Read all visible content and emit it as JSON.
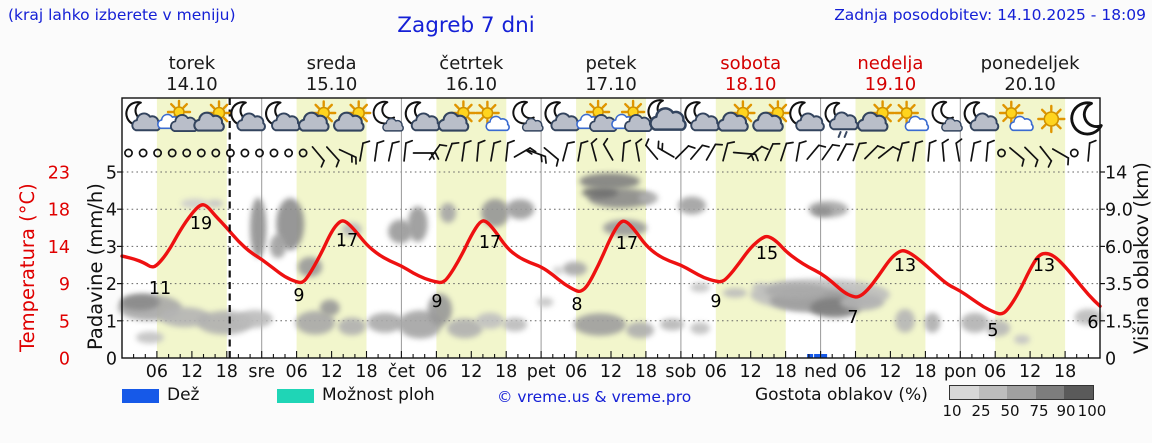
{
  "header": {
    "hint": "(kraj lahko izberete v meniju)",
    "title": "Zagreb 7 dni",
    "updated": "Zadnja posodobitev: 14.10.2025 - 18:09"
  },
  "colors": {
    "blue_text": "#1520d6",
    "red": "#e00000",
    "weekend_red": "#d40000",
    "curve_red": "#ee1111",
    "day_band": "#f2f6cc",
    "rain_blue": "#1659e8",
    "showers_cyan": "#1fd5b6",
    "density_scale": [
      "#d7d7d7",
      "#bdbdbd",
      "#a0a0a0",
      "#7d7d7d",
      "#5a5a5a"
    ]
  },
  "days": [
    {
      "name": "torek",
      "date": "14.10",
      "weekend": false
    },
    {
      "name": "sreda",
      "date": "15.10",
      "weekend": false
    },
    {
      "name": "četrtek",
      "date": "16.10",
      "weekend": false
    },
    {
      "name": "petek",
      "date": "17.10",
      "weekend": false
    },
    {
      "name": "sobota",
      "date": "18.10",
      "weekend": true
    },
    {
      "name": "nedelja",
      "date": "19.10",
      "weekend": true
    },
    {
      "name": "ponedeljek",
      "date": "20.10",
      "weekend": false
    }
  ],
  "axes": {
    "temp_title": "Temperatura (°C)",
    "temp_ticks": [
      "23",
      "18",
      "14",
      "9",
      "5",
      "0"
    ],
    "precip_title": "Padavine (mm/h)",
    "precip_ticks": [
      "5",
      "4",
      "3",
      "2",
      "1",
      "0"
    ],
    "cloud_title": "Višina oblakov (km)",
    "cloud_ticks": [
      "14",
      "9.0",
      "6.0",
      "3.5",
      "1.5",
      "0"
    ],
    "hour_labels": [
      "06",
      "12",
      "18"
    ],
    "day_abbrs": [
      "sre",
      "čet",
      "pet",
      "sob",
      "ned",
      "pon"
    ]
  },
  "legend": {
    "rain_label": "Dež",
    "showers_label": "Možnost ploh",
    "copyright": "© vreme.us & vreme.pro",
    "density_label": "Gostota oblakov (%)",
    "density_ticks": [
      "10",
      "25",
      "50",
      "75",
      "90",
      "100"
    ]
  },
  "chart_data": {
    "type": "line",
    "title": "Zagreb 7 dni",
    "x_axis": "hours from 14.10.2025 00:00, 7 days (168 h)",
    "y_axes": {
      "temperature_c": [
        0,
        23
      ],
      "precip_mm_h": [
        0,
        5
      ],
      "cloud_height_km": [
        "0",
        "1.5",
        "3.5",
        "6.0",
        "9.0",
        "14"
      ]
    },
    "now_hour": 18.5,
    "daily_min_max": [
      {
        "day": "torek",
        "tmin": 11,
        "tmax": 19
      },
      {
        "day": "sreda",
        "tmin": 9,
        "tmax": 17
      },
      {
        "day": "četrtek",
        "tmin": 9,
        "tmax": 17
      },
      {
        "day": "petek",
        "tmin": 8,
        "tmax": 17
      },
      {
        "day": "sobota",
        "tmin": 9,
        "tmax": 15
      },
      {
        "day": "nedelja",
        "tmin": 7,
        "tmax": 13
      },
      {
        "day": "ponedeljek",
        "tmin": 5,
        "tmax": 13,
        "end_value": 6
      }
    ],
    "temperature_series": [
      [
        0,
        12.6
      ],
      [
        2,
        12.3
      ],
      [
        4,
        11.7
      ],
      [
        5,
        11.2
      ],
      [
        6,
        11.4
      ],
      [
        8,
        13.2
      ],
      [
        10,
        15.8
      ],
      [
        12,
        17.9
      ],
      [
        13.5,
        19.0
      ],
      [
        14.5,
        18.9
      ],
      [
        16,
        17.6
      ],
      [
        18,
        16.1
      ],
      [
        20,
        14.4
      ],
      [
        22,
        13.1
      ],
      [
        24,
        12.2
      ],
      [
        26,
        11.1
      ],
      [
        28,
        10.0
      ],
      [
        30,
        9.4
      ],
      [
        31,
        9.3
      ],
      [
        32,
        10.1
      ],
      [
        34,
        12.6
      ],
      [
        36,
        15.7
      ],
      [
        37.5,
        17.0
      ],
      [
        38.5,
        16.9
      ],
      [
        40,
        15.8
      ],
      [
        42,
        14.0
      ],
      [
        44,
        12.8
      ],
      [
        46,
        12.0
      ],
      [
        48,
        11.4
      ],
      [
        50,
        10.5
      ],
      [
        52,
        9.8
      ],
      [
        54,
        9.4
      ],
      [
        55,
        9.3
      ],
      [
        56,
        9.9
      ],
      [
        58,
        12.2
      ],
      [
        60,
        15.2
      ],
      [
        61.5,
        16.9
      ],
      [
        62.5,
        17.0
      ],
      [
        64,
        15.8
      ],
      [
        66,
        13.7
      ],
      [
        68,
        12.5
      ],
      [
        70,
        11.8
      ],
      [
        72,
        11.3
      ],
      [
        74,
        10.3
      ],
      [
        76,
        9.1
      ],
      [
        78,
        8.3
      ],
      [
        78.8,
        8.2
      ],
      [
        80,
        8.9
      ],
      [
        82,
        11.7
      ],
      [
        84,
        15.0
      ],
      [
        85.5,
        16.8
      ],
      [
        86.5,
        17.0
      ],
      [
        88,
        15.9
      ],
      [
        90,
        13.9
      ],
      [
        92,
        12.7
      ],
      [
        94,
        12.0
      ],
      [
        96,
        11.5
      ],
      [
        98,
        10.7
      ],
      [
        100,
        9.9
      ],
      [
        102,
        9.5
      ],
      [
        103,
        9.4
      ],
      [
        104,
        9.9
      ],
      [
        106,
        11.7
      ],
      [
        108,
        13.7
      ],
      [
        110,
        14.9
      ],
      [
        111,
        15.1
      ],
      [
        112.5,
        14.4
      ],
      [
        114,
        13.2
      ],
      [
        116,
        12.1
      ],
      [
        118,
        11.2
      ],
      [
        120,
        10.5
      ],
      [
        122,
        9.4
      ],
      [
        124,
        8.1
      ],
      [
        125.5,
        7.6
      ],
      [
        126.5,
        7.5
      ],
      [
        128,
        8.3
      ],
      [
        130,
        10.2
      ],
      [
        132,
        12.3
      ],
      [
        133.5,
        13.2
      ],
      [
        134.5,
        13.3
      ],
      [
        136,
        12.7
      ],
      [
        138,
        11.5
      ],
      [
        140,
        10.2
      ],
      [
        142,
        9.0
      ],
      [
        144,
        8.3
      ],
      [
        146,
        7.3
      ],
      [
        148,
        6.3
      ],
      [
        150,
        5.6
      ],
      [
        151,
        5.4
      ],
      [
        152,
        5.8
      ],
      [
        154,
        8.0
      ],
      [
        156,
        11.0
      ],
      [
        157.5,
        12.8
      ],
      [
        159,
        13.0
      ],
      [
        160.5,
        12.4
      ],
      [
        162,
        11.3
      ],
      [
        164,
        9.6
      ],
      [
        166,
        7.8
      ],
      [
        168,
        6.4
      ]
    ],
    "temperature_labels": [
      [
        11,
        160,
        294
      ],
      [
        19,
        201,
        229
      ],
      [
        9,
        299,
        301
      ],
      [
        17,
        347,
        246
      ],
      [
        9,
        437,
        307
      ],
      [
        17,
        490,
        248
      ],
      [
        8,
        577,
        310
      ],
      [
        17,
        627,
        249
      ],
      [
        9,
        716,
        307
      ],
      [
        15,
        767,
        259
      ],
      [
        7,
        853,
        323
      ],
      [
        13,
        905,
        271
      ],
      [
        5,
        993,
        336
      ],
      [
        13,
        1044,
        271
      ],
      [
        6,
        1093,
        328
      ]
    ],
    "icons": [
      "moon-cloud",
      "sun-clouds",
      "sun-cloud",
      "moon-cloud",
      "moon-cloud",
      "sun-cloud",
      "sun-cloud",
      "moon-small",
      "moon-cloud",
      "sun-cloud",
      "sun-cloud-white",
      "moon-small",
      "moon-cloud",
      "sun-clouds",
      "sun-clouds",
      "moon-big",
      "moon-cloud",
      "sun-cloud",
      "sun-cloud",
      "moon-cloud",
      "moon-drizzle",
      "sun-cloud",
      "sun-cloud-white",
      "moon-small",
      "moon-cloud",
      "sun-cloud-white",
      "sun",
      "moon"
    ],
    "wind": [
      "c",
      "c",
      "c",
      "c",
      "c",
      "c",
      "c",
      "c",
      "c",
      "c",
      "c",
      "c",
      "c",
      [
        140,
        1
      ],
      [
        138,
        1
      ],
      [
        115,
        2
      ],
      [
        10,
        1
      ],
      [
        8,
        1
      ],
      [
        12,
        1
      ],
      [
        6,
        1
      ],
      [
        90,
        2,
        "L"
      ],
      [
        35,
        1
      ],
      [
        20,
        1
      ],
      [
        8,
        1
      ],
      [
        5,
        1
      ],
      [
        10,
        1
      ],
      [
        6,
        1
      ],
      [
        60,
        2
      ],
      [
        110,
        2
      ],
      [
        130,
        1
      ],
      [
        15,
        1
      ],
      [
        10,
        1
      ],
      [
        345,
        1
      ],
      [
        330,
        1
      ],
      [
        5,
        1
      ],
      [
        350,
        1
      ],
      [
        320,
        1
      ],
      [
        300,
        2
      ],
      [
        45,
        1
      ],
      [
        40,
        1
      ],
      [
        30,
        1
      ],
      [
        15,
        1
      ],
      [
        95,
        2,
        "L"
      ],
      [
        50,
        1
      ],
      [
        25,
        1
      ],
      [
        18,
        1
      ],
      [
        10,
        1
      ],
      [
        40,
        1
      ],
      [
        35,
        1
      ],
      [
        28,
        1
      ],
      [
        20,
        1
      ],
      [
        45,
        1
      ],
      [
        52,
        1
      ],
      [
        15,
        1
      ],
      [
        10,
        1
      ],
      [
        5,
        1
      ],
      [
        355,
        1
      ],
      [
        350,
        1
      ],
      [
        10,
        1
      ],
      [
        5,
        1
      ],
      "c",
      [
        130,
        1
      ],
      [
        135,
        1
      ],
      [
        142,
        1
      ],
      [
        120,
        1
      ],
      "c",
      [
        5,
        1
      ]
    ],
    "clouds": [
      [
        4.8,
        1.35,
        5.5,
        0.35,
        "#a8a8a8"
      ],
      [
        3.1,
        1.5,
        3.4,
        0.22,
        "#8a8a8a"
      ],
      [
        10.8,
        1.1,
        4.3,
        0.27,
        "#b4b4b4"
      ],
      [
        17.7,
        0.95,
        4.8,
        0.32,
        "#b0b0b0"
      ],
      [
        22.8,
        1.05,
        3.1,
        0.24,
        "#bbbbbb"
      ],
      [
        4.8,
        0.55,
        2.4,
        0.16,
        "#c2c2c2"
      ],
      [
        12.5,
        4.15,
        2.4,
        0.13,
        "#cccccc"
      ],
      [
        16.0,
        4.15,
        1.4,
        0.11,
        "#c6c6c6"
      ],
      [
        23.4,
        3.5,
        1.4,
        0.81,
        "#909090"
      ],
      [
        28.9,
        3.6,
        2.4,
        0.7,
        "#8c8c8c"
      ],
      [
        26.8,
        3.0,
        1.4,
        0.32,
        "#a0a0a0"
      ],
      [
        32.3,
        2.45,
        2.1,
        0.27,
        "#9a9a9a"
      ],
      [
        33.2,
        0.95,
        3.4,
        0.32,
        "#a8a8a8"
      ],
      [
        35.7,
        1.35,
        1.7,
        0.22,
        "#999999"
      ],
      [
        39.5,
        0.85,
        2.4,
        0.24,
        "#b0b0b0"
      ],
      [
        45.2,
        0.95,
        3.1,
        0.27,
        "#aaaaaa"
      ],
      [
        39.5,
        3.45,
        1.7,
        0.19,
        "#b8b8b8"
      ],
      [
        47.8,
        3.4,
        2.1,
        0.32,
        "#9a9a9a"
      ],
      [
        51.2,
        0.9,
        3.8,
        0.38,
        "#a4a4a4"
      ],
      [
        54.6,
        1.3,
        2.1,
        0.43,
        "#989898"
      ],
      [
        58.9,
        0.8,
        3.1,
        0.27,
        "#b0b0b0"
      ],
      [
        63.2,
        1.0,
        2.4,
        0.22,
        "#c0c0c0"
      ],
      [
        67.5,
        0.9,
        2.1,
        0.19,
        "#bbbbbb"
      ],
      [
        50.8,
        3.6,
        1.7,
        0.48,
        "#999999"
      ],
      [
        56.0,
        3.9,
        1.4,
        0.27,
        "#a6a6a6"
      ],
      [
        64.1,
        3.9,
        2.4,
        0.38,
        "#969696"
      ],
      [
        68.4,
        4.0,
        2.4,
        0.27,
        "#9c9c9c"
      ],
      [
        72.7,
        1.5,
        1.4,
        0.13,
        "#c6c6c6"
      ],
      [
        74.9,
        2.35,
        0.9,
        0.11,
        "#cccccc"
      ],
      [
        85.6,
        4.3,
        5.5,
        0.27,
        "#8a8a8a"
      ],
      [
        82.1,
        4.45,
        3.1,
        0.16,
        "#707070"
      ],
      [
        83.8,
        4.75,
        5.2,
        0.22,
        "#808080"
      ],
      [
        90.4,
        4.3,
        1.7,
        0.16,
        "#b0b0b0"
      ],
      [
        97.9,
        4.1,
        2.4,
        0.24,
        "#a0a0a0"
      ],
      [
        86.4,
        3.5,
        3.8,
        0.22,
        "#9a9a9a"
      ],
      [
        77.8,
        2.4,
        2.1,
        0.19,
        "#a8a8a8"
      ],
      [
        82.1,
        0.9,
        4.5,
        0.3,
        "#9e9e9e"
      ],
      [
        89.0,
        0.75,
        2.4,
        0.22,
        "#aeaeae"
      ],
      [
        94.5,
        0.9,
        2.1,
        0.16,
        "#b6b6b6"
      ],
      [
        99.3,
        0.8,
        1.7,
        0.16,
        "#c0c0c0"
      ],
      [
        99.3,
        1.9,
        1.7,
        0.13,
        "#c4c4c4"
      ],
      [
        105.3,
        1.75,
        2.1,
        0.13,
        "#bcbcbc"
      ],
      [
        109.6,
        1.9,
        1.4,
        0.11,
        "#c0c0c0"
      ],
      [
        119.9,
        1.7,
        12.0,
        0.43,
        "#bdbdbd"
      ],
      [
        119.0,
        1.55,
        7.7,
        0.32,
        "#9e9e9e"
      ],
      [
        122.5,
        1.35,
        4.3,
        0.27,
        "#7e7e7e"
      ],
      [
        115.6,
        1.8,
        5.2,
        0.22,
        "#aaaaaa"
      ],
      [
        127.1,
        1.5,
        3.8,
        0.22,
        "#b2b2b2"
      ],
      [
        121.3,
        4.0,
        3.4,
        0.22,
        "#a6a6a6"
      ],
      [
        120.3,
        3.95,
        1.7,
        0.13,
        "#8e8e8e"
      ],
      [
        134.5,
        1.0,
        1.7,
        0.32,
        "#b6b6b6"
      ],
      [
        139.2,
        0.95,
        1.4,
        0.27,
        "#aeaeae"
      ],
      [
        146.5,
        0.95,
        2.4,
        0.27,
        "#b2b2b2"
      ],
      [
        150.5,
        0.8,
        2.1,
        0.22,
        "#b8b8b8"
      ],
      [
        154.6,
        0.5,
        1.4,
        0.13,
        "#c4c4c4"
      ],
      [
        166.0,
        1.1,
        2.4,
        0.22,
        "#bcbcbc"
      ]
    ],
    "rain_bars_hours": [
      118.2,
      119.4,
      120.6
    ]
  }
}
